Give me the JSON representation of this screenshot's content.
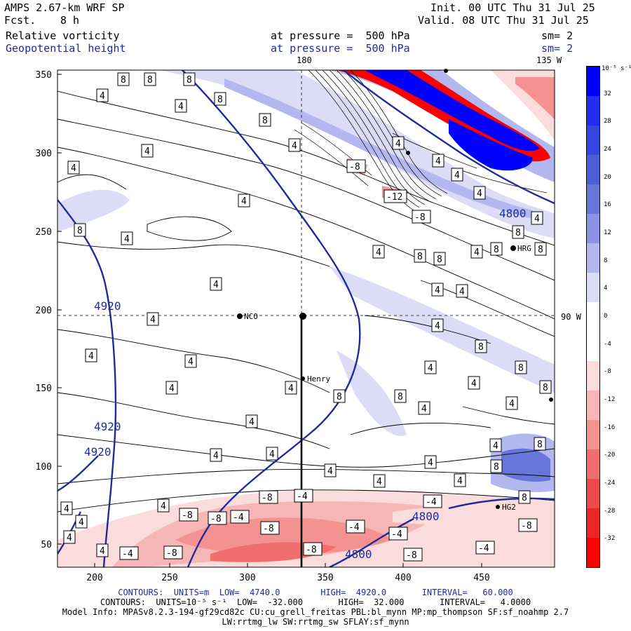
{
  "header": {
    "model": "AMPS 2.67-km WRF SP",
    "fcst_label": "Fcst.",
    "fcst_value": "8 h",
    "init": "Init. 00 UTC Thu 31 Jul 25",
    "valid": "Valid. 08 UTC Thu 31 Jul 25",
    "field1_name": "Relative vorticity",
    "field1_level": "at pressure =  500 hPa",
    "field1_sm": "sm= 2",
    "field2_name": "Geopotential height",
    "field2_level": "at pressure =  500 hPa",
    "field2_sm": "sm= 2"
  },
  "map_labels": {
    "lon_180": "180",
    "lon_135w": "135 W",
    "lon_90w": "90 W"
  },
  "axes": {
    "y_ticks": [
      "350",
      "300",
      "250",
      "200",
      "150",
      "100",
      "50"
    ],
    "x_ticks": [
      "200",
      "250",
      "300",
      "350",
      "400",
      "450"
    ]
  },
  "colorbar": {
    "unit": "10⁻⁵ s⁻¹",
    "labels": [
      "32",
      "28",
      "24",
      "20",
      "16",
      "12",
      "8",
      "4",
      "0",
      "-4",
      "-8",
      "-12",
      "-16",
      "-20",
      "-24",
      "-28",
      "-32"
    ],
    "colors": [
      "#0000ff",
      "#1f2fee",
      "#3546e0",
      "#4b5ed3",
      "#6876da",
      "#8b94e4",
      "#b2b8ef",
      "#dcdcf7",
      "#ffffff",
      "#ffffff",
      "#fbdcdc",
      "#f7b6b6",
      "#f49292",
      "#f16e6e",
      "#ee4a4a",
      "#ea2626",
      "#ff0000"
    ]
  },
  "stations": {
    "nco": "NCO",
    "henry": "Henry",
    "hrg": "HRG",
    "hg2": "HG2"
  },
  "height_labels": [
    "4920",
    "4920",
    "4920",
    "4800",
    "4800",
    "4800"
  ],
  "vort_labels": [
    "8",
    "4",
    "-4",
    "-8",
    "-12"
  ],
  "footer": {
    "line1": "CONTOURS:  UNITS=m  LOW=  4740.0        HIGH=  4920.0       INTERVAL=   60.000",
    "line2": "CONTOURS:  UNITS=10⁻⁵ s⁻¹  LOW=  -32.000       HIGH=  32.000       INTERVAL=   4.0000",
    "line3": "Model Info: MPASv8.2.3-194-gf29cd82c CU:cu_grell_freitas PBL:bl_mynn MP:mp_thompson SF:sf_noahmp 2.7",
    "line4": "LW:rrtmg_lw SW:rrtmg_sw SFLAY:sf_mynn"
  }
}
